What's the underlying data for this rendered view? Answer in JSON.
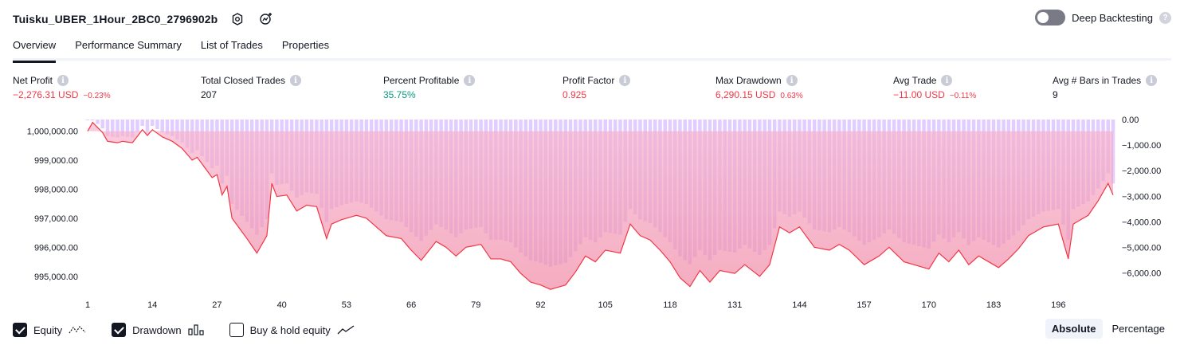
{
  "header": {
    "strategy_name": "Tuisku_UBER_1Hour_2BC0_2796902b",
    "deep_backtesting_label": "Deep Backtesting",
    "help_glyph": "?"
  },
  "tabs": [
    {
      "label": "Overview"
    },
    {
      "label": "Performance Summary"
    },
    {
      "label": "List of Trades"
    },
    {
      "label": "Properties"
    }
  ],
  "metrics": [
    {
      "label": "Net Profit",
      "value": "−2,276.31 USD",
      "sub": "−0.23%",
      "color": "#f23645"
    },
    {
      "label": "Total Closed Trades",
      "value": "207",
      "sub": "",
      "color": "#131722"
    },
    {
      "label": "Percent Profitable",
      "value": "35.75%",
      "sub": "",
      "color": "#089981"
    },
    {
      "label": "Profit Factor",
      "value": "0.925",
      "sub": "",
      "color": "#f23645"
    },
    {
      "label": "Max Drawdown",
      "value": "6,290.15 USD",
      "sub": "0.63%",
      "color": "#f23645"
    },
    {
      "label": "Avg Trade",
      "value": "−11.00 USD",
      "sub": "−0.11%",
      "color": "#f23645"
    },
    {
      "label": "Avg # Bars in Trades",
      "value": "9",
      "sub": "",
      "color": "#131722"
    }
  ],
  "chart_data": {
    "type": "area",
    "x_ticks": [
      "1",
      "14",
      "27",
      "40",
      "53",
      "66",
      "79",
      "92",
      "105",
      "118",
      "131",
      "144",
      "157",
      "170",
      "183",
      "196"
    ],
    "y_left_ticks": [
      "1,000,000.00",
      "999,000.00",
      "998,000.00",
      "997,000.00",
      "996,000.00",
      "995,000.00"
    ],
    "y_right_ticks": [
      "0.00",
      "−1,000.00",
      "−2,000.00",
      "−3,000.00",
      "−4,000.00",
      "−5,000.00",
      "−6,000.00"
    ],
    "y_left_range": [
      994500,
      1000400
    ],
    "y_right_range": [
      -6290,
      0
    ],
    "trade_count": 207,
    "equity_anchors": [
      [
        1,
        1000000
      ],
      [
        2,
        1000300
      ],
      [
        4,
        999950
      ],
      [
        5,
        999650
      ],
      [
        7,
        999600
      ],
      [
        8,
        999650
      ],
      [
        10,
        999600
      ],
      [
        12,
        1000050
      ],
      [
        13,
        999850
      ],
      [
        14,
        1000050
      ],
      [
        16,
        999800
      ],
      [
        18,
        999650
      ],
      [
        20,
        999400
      ],
      [
        22,
        999000
      ],
      [
        23,
        999100
      ],
      [
        26,
        998400
      ],
      [
        27,
        998500
      ],
      [
        28,
        997800
      ],
      [
        29,
        998100
      ],
      [
        30,
        997000
      ],
      [
        33,
        996300
      ],
      [
        35,
        995800
      ],
      [
        37,
        996400
      ],
      [
        38,
        998200
      ],
      [
        39,
        997750
      ],
      [
        41,
        997800
      ],
      [
        43,
        997250
      ],
      [
        45,
        997450
      ],
      [
        47,
        997400
      ],
      [
        49,
        996300
      ],
      [
        50,
        996800
      ],
      [
        52,
        996950
      ],
      [
        55,
        997100
      ],
      [
        57,
        997000
      ],
      [
        59,
        996700
      ],
      [
        61,
        996400
      ],
      [
        64,
        996300
      ],
      [
        66,
        995900
      ],
      [
        68,
        995550
      ],
      [
        71,
        996200
      ],
      [
        73,
        996000
      ],
      [
        75,
        995700
      ],
      [
        77,
        996000
      ],
      [
        80,
        996100
      ],
      [
        82,
        995600
      ],
      [
        84,
        995600
      ],
      [
        86,
        995500
      ],
      [
        88,
        995100
      ],
      [
        90,
        994800
      ],
      [
        92,
        994700
      ],
      [
        94,
        994550
      ],
      [
        97,
        994700
      ],
      [
        99,
        995150
      ],
      [
        101,
        995700
      ],
      [
        103,
        995500
      ],
      [
        105,
        995900
      ],
      [
        108,
        995800
      ],
      [
        110,
        996800
      ],
      [
        112,
        996400
      ],
      [
        114,
        996250
      ],
      [
        116,
        995900
      ],
      [
        118,
        995500
      ],
      [
        120,
        994950
      ],
      [
        122,
        994650
      ],
      [
        124,
        995200
      ],
      [
        126,
        994800
      ],
      [
        128,
        995200
      ],
      [
        131,
        995100
      ],
      [
        133,
        995400
      ],
      [
        136,
        995000
      ],
      [
        138,
        995400
      ],
      [
        140,
        996700
      ],
      [
        142,
        996500
      ],
      [
        144,
        996700
      ],
      [
        147,
        996000
      ],
      [
        150,
        995900
      ],
      [
        152,
        996100
      ],
      [
        154,
        995900
      ],
      [
        157,
        995400
      ],
      [
        160,
        995700
      ],
      [
        162,
        996000
      ],
      [
        165,
        995500
      ],
      [
        167,
        995400
      ],
      [
        170,
        995250
      ],
      [
        172,
        995800
      ],
      [
        174,
        995500
      ],
      [
        176,
        995900
      ],
      [
        178,
        995400
      ],
      [
        180,
        995700
      ],
      [
        182,
        995500
      ],
      [
        184,
        995300
      ],
      [
        186,
        995600
      ],
      [
        188,
        995950
      ],
      [
        190,
        996400
      ],
      [
        193,
        996700
      ],
      [
        196,
        996800
      ],
      [
        198,
        995600
      ],
      [
        199,
        996800
      ],
      [
        202,
        997100
      ],
      [
        204,
        997600
      ],
      [
        206,
        998200
      ],
      [
        207,
        997800
      ]
    ],
    "series": [
      {
        "name": "Equity",
        "color": "#f23645"
      },
      {
        "name": "Drawdown",
        "color": "#c9a8ff"
      }
    ]
  },
  "legend": [
    {
      "label": "Equity",
      "checked": true,
      "icon": "equity-line-icon"
    },
    {
      "label": "Drawdown",
      "checked": true,
      "icon": "drawdown-bars-icon"
    },
    {
      "label": "Buy & hold equity",
      "checked": false,
      "icon": "buy-hold-line-icon"
    }
  ],
  "modes": [
    {
      "label": "Absolute",
      "active": true
    },
    {
      "label": "Percentage",
      "active": false
    }
  ]
}
